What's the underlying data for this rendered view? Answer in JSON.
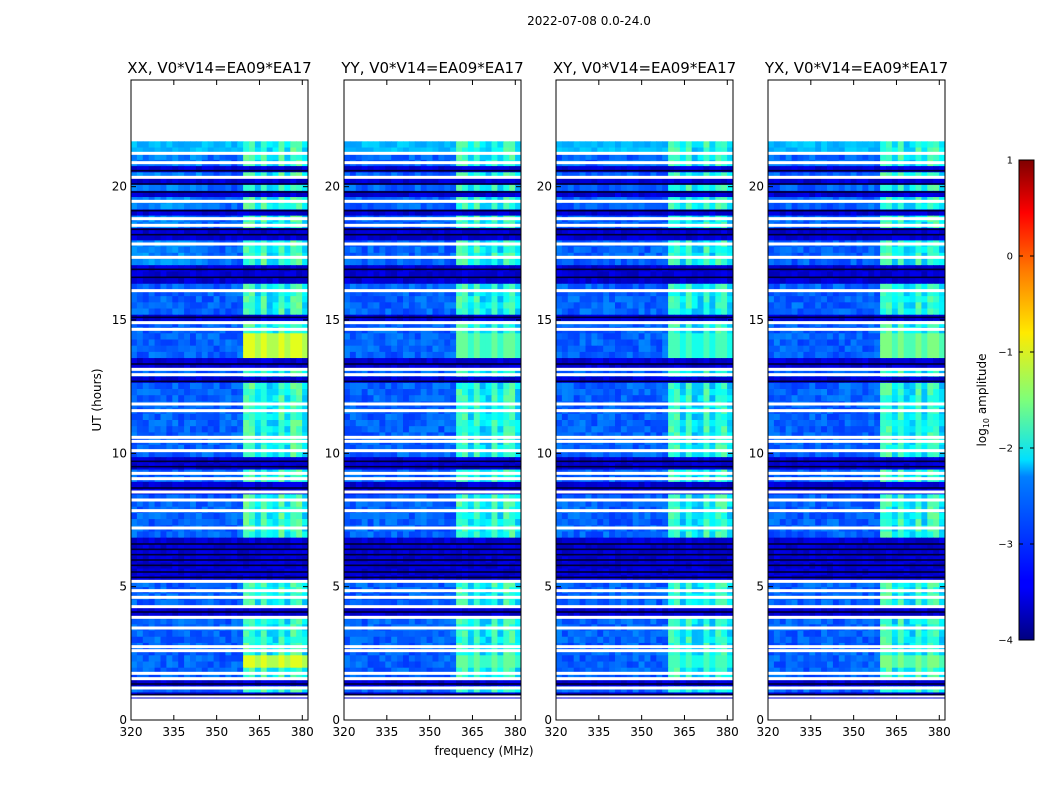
{
  "figure": {
    "suptitle": "2022-07-08 0.0-24.0"
  },
  "chart_data": {
    "type": "heatmap",
    "xlabel": "frequency (MHz)",
    "ylabel": "UT (hours)",
    "xlim": [
      320,
      382
    ],
    "ylim": [
      0,
      24
    ],
    "xticks": [
      320,
      335,
      350,
      365,
      380
    ],
    "yticks": [
      0,
      5,
      10,
      15,
      20
    ],
    "data_span_hours": [
      0.8,
      21.7
    ],
    "rfi_band_mhz": [
      360,
      381
    ],
    "panels": [
      {
        "title": "XX, V0*V14=EA09*EA17",
        "intensity": 1.0
      },
      {
        "title": "YY, V0*V14=EA09*EA17",
        "intensity": 0.78
      },
      {
        "title": "XY, V0*V14=EA09*EA17",
        "intensity": 0.72
      },
      {
        "title": "YX, V0*V14=EA09*EA17",
        "intensity": 0.82
      }
    ],
    "flagged_rows_hours": [
      0.75,
      0.9,
      1.2,
      1.55,
      1.75,
      2.6,
      2.75,
      3.45,
      3.85,
      4.25,
      4.6,
      4.85,
      5.2,
      7.2,
      7.85,
      8.25,
      8.55,
      9.05,
      9.25,
      10.1,
      10.45,
      10.6,
      11.6,
      11.85,
      12.95,
      13.15,
      14.65,
      14.9,
      16.1,
      17.35,
      17.85,
      18.55,
      18.8,
      19.45,
      20.35,
      20.9,
      21.25
    ],
    "dark_rows_hours": [
      0.95,
      1.35,
      4.05,
      5.35,
      5.55,
      5.8,
      6.0,
      6.2,
      6.4,
      6.6,
      8.7,
      9.5,
      9.7,
      12.7,
      13.35,
      15.1,
      16.6,
      16.9,
      18.2,
      18.4,
      19.1,
      19.8,
      20.1,
      20.6
    ],
    "bright_rows": [
      {
        "hours": [
          1.85,
          2.45
        ],
        "level": 0.55
      },
      {
        "hours": [
          13.5,
          14.4
        ],
        "level": 0.55
      },
      {
        "hours": [
          9.75,
          9.95
        ],
        "level": 0.75
      }
    ],
    "colorbar": {
      "label": "log10 amplitude",
      "label_main": "log",
      "label_sub": "10",
      "label_tail": " amplitude",
      "min": -4,
      "max": 1,
      "ticks": [
        "1",
        "0",
        "−1",
        "−2",
        "−3",
        "−4"
      ],
      "colormap": "jet"
    }
  }
}
